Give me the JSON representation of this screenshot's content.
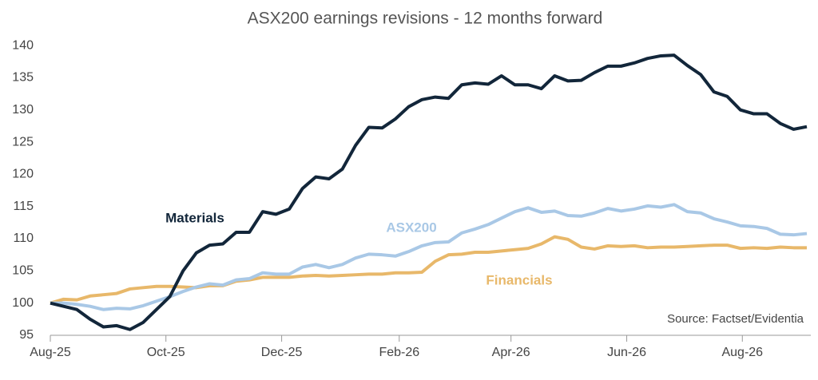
{
  "chart_data": {
    "type": "line",
    "title": "ASX200 earnings revisions - 12 months forward",
    "annotation": "Source: Factset/Evidentia",
    "x": [
      0,
      1,
      2,
      3,
      4,
      5,
      6,
      7,
      8,
      9,
      10,
      11,
      12,
      13,
      14,
      15,
      16,
      17,
      18,
      19,
      20,
      21,
      22,
      23,
      24,
      25,
      26,
      27,
      28,
      29,
      30,
      31,
      32,
      33,
      34,
      35,
      36,
      37,
      38,
      39,
      40,
      41,
      42,
      43,
      44,
      45,
      46,
      47,
      48,
      49,
      50,
      51,
      52,
      53,
      54,
      55,
      56,
      57
    ],
    "xlim": [
      0,
      57.3
    ],
    "xticks": [
      {
        "value": 0,
        "label": "Aug-25"
      },
      {
        "value": 8.71,
        "label": "Oct-25"
      },
      {
        "value": 17.43,
        "label": "Dec-25"
      },
      {
        "value": 26.29,
        "label": "Feb-26"
      },
      {
        "value": 34.71,
        "label": "Apr-26"
      },
      {
        "value": 43.43,
        "label": "Jun-26"
      },
      {
        "value": 52.14,
        "label": "Aug-26"
      }
    ],
    "ylim": [
      95,
      141
    ],
    "yticks": [
      95,
      100,
      105,
      110,
      115,
      120,
      125,
      130,
      135,
      140
    ],
    "grid": false,
    "series": [
      {
        "name": "Materials",
        "color": "#12263a",
        "values": [
          100,
          99.5,
          99,
          97.5,
          96.3,
          96.5,
          95.9,
          97,
          99,
          101,
          105,
          107.8,
          109,
          109.2,
          111,
          111,
          114.2,
          113.8,
          114.6,
          117.8,
          119.6,
          119.3,
          120.8,
          124.5,
          127.3,
          127.2,
          128.6,
          130.5,
          131.6,
          132,
          131.8,
          133.9,
          134.2,
          134,
          135.3,
          133.9,
          133.9,
          133.3,
          135.3,
          134.5,
          134.6,
          135.8,
          136.8,
          136.8,
          137.3,
          138,
          138.4,
          138.5,
          136.9,
          135.5,
          132.8,
          132.1,
          130,
          129.4,
          129.4,
          127.9,
          127,
          127.4
        ]
      },
      {
        "name": "ASX200",
        "color": "#a9c8e6",
        "values": [
          100,
          100,
          99.8,
          99.5,
          99,
          99.2,
          99.1,
          99.6,
          100.3,
          101,
          101.8,
          102.5,
          103,
          102.8,
          103.6,
          103.8,
          104.7,
          104.5,
          104.5,
          105.6,
          106,
          105.5,
          106,
          107,
          107.6,
          107.5,
          107.3,
          108,
          108.9,
          109.4,
          109.5,
          110.9,
          111.5,
          112.2,
          113.2,
          114.2,
          114.8,
          114.1,
          114.3,
          113.6,
          113.5,
          114,
          114.7,
          114.3,
          114.6,
          115.1,
          114.9,
          115.3,
          114.2,
          114,
          113.1,
          112.6,
          112,
          111.9,
          111.6,
          110.7,
          110.6,
          110.8
        ]
      },
      {
        "name": "Financials",
        "color": "#e8b86a",
        "values": [
          100,
          100.6,
          100.5,
          101.1,
          101.3,
          101.5,
          102.2,
          102.4,
          102.6,
          102.6,
          102.5,
          102.4,
          102.7,
          102.7,
          103.4,
          103.6,
          104,
          104,
          104,
          104.2,
          104.3,
          104.2,
          104.3,
          104.4,
          104.5,
          104.5,
          104.7,
          104.7,
          104.8,
          106.5,
          107.5,
          107.6,
          107.9,
          107.9,
          108.1,
          108.3,
          108.5,
          109.2,
          110.3,
          109.9,
          108.7,
          108.4,
          108.9,
          108.8,
          108.9,
          108.6,
          108.7,
          108.7,
          108.8,
          108.9,
          109,
          109,
          108.5,
          108.6,
          108.5,
          108.7,
          108.6,
          108.6
        ]
      }
    ]
  }
}
